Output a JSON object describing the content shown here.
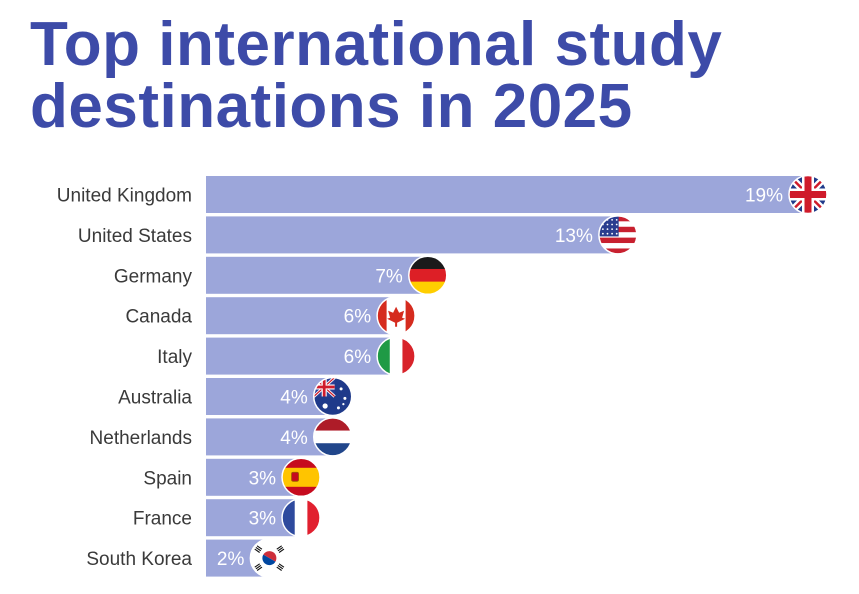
{
  "title_lines": [
    "Top international study",
    "destinations in 2025"
  ],
  "chart_data": {
    "type": "bar",
    "orientation": "horizontal",
    "title": "Top international study destinations in 2025",
    "categories": [
      "United Kingdom",
      "United States",
      "Germany",
      "Canada",
      "Italy",
      "Australia",
      "Netherlands",
      "Spain",
      "France",
      "South Korea"
    ],
    "values": [
      19,
      13,
      7,
      6,
      6,
      4,
      4,
      3,
      3,
      2
    ],
    "value_labels": [
      "19%",
      "13%",
      "7%",
      "6%",
      "6%",
      "4%",
      "4%",
      "3%",
      "3%",
      "2%"
    ],
    "flags": [
      "uk-flag-icon",
      "us-flag-icon",
      "germany-flag-icon",
      "canada-flag-icon",
      "italy-flag-icon",
      "australia-flag-icon",
      "netherlands-flag-icon",
      "spain-flag-icon",
      "france-flag-icon",
      "south-korea-flag-icon"
    ],
    "bar_color": "#9ca6da",
    "title_color": "#3d4ba8",
    "xlim": [
      0,
      19
    ],
    "grid": false,
    "legend": "none"
  }
}
